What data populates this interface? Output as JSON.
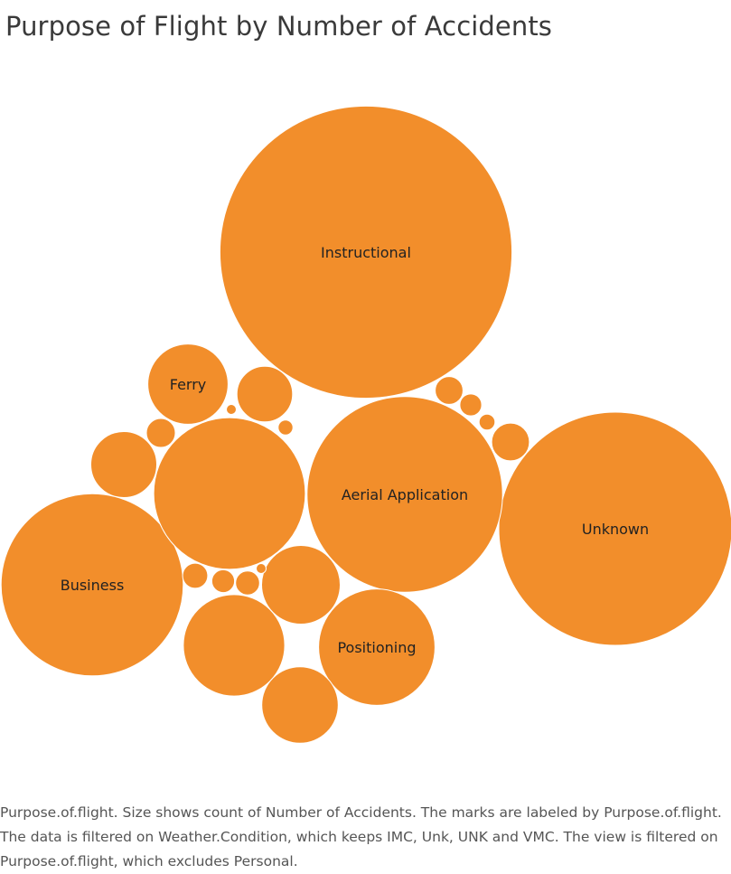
{
  "chart_data": {
    "type": "packed-bubble",
    "title": "Purpose of Flight by Number of Accidents",
    "caption": "Purpose.of.flight.  Size shows count of Number of Accidents.  The marks are labeled by Purpose.of.flight. The data is filtered on Weather.Condition, which keeps IMC, Unk, UNK and VMC. The view is filtered on Purpose.of.flight, which excludes Personal.",
    "color": "#f28e2b",
    "size_measure": "count of Number of Accidents",
    "bubbles": [
      {
        "label": "Instructional",
        "value": 10200
      },
      {
        "label": "Unknown",
        "value": 6500
      },
      {
        "label": "Aerial Application",
        "value": 4570
      },
      {
        "label": "Business",
        "value": 3970
      },
      {
        "label": "",
        "value": 2750
      },
      {
        "label": "Positioning",
        "value": 1620
      },
      {
        "label": "",
        "value": 1230
      },
      {
        "label": "Ferry",
        "value": 770
      },
      {
        "label": "",
        "value": 740
      },
      {
        "label": "",
        "value": 700
      },
      {
        "label": "",
        "value": 520
      },
      {
        "label": "",
        "value": 370
      },
      {
        "label": "",
        "value": 170
      },
      {
        "label": "",
        "value": 100
      },
      {
        "label": "",
        "value": 93
      },
      {
        "label": "",
        "value": 76
      },
      {
        "label": "",
        "value": 69
      },
      {
        "label": "",
        "value": 62
      },
      {
        "label": "",
        "value": 57
      },
      {
        "label": "",
        "value": 30
      },
      {
        "label": "",
        "value": 26
      },
      {
        "label": "",
        "value": 12
      },
      {
        "label": "",
        "value": 12
      }
    ]
  }
}
